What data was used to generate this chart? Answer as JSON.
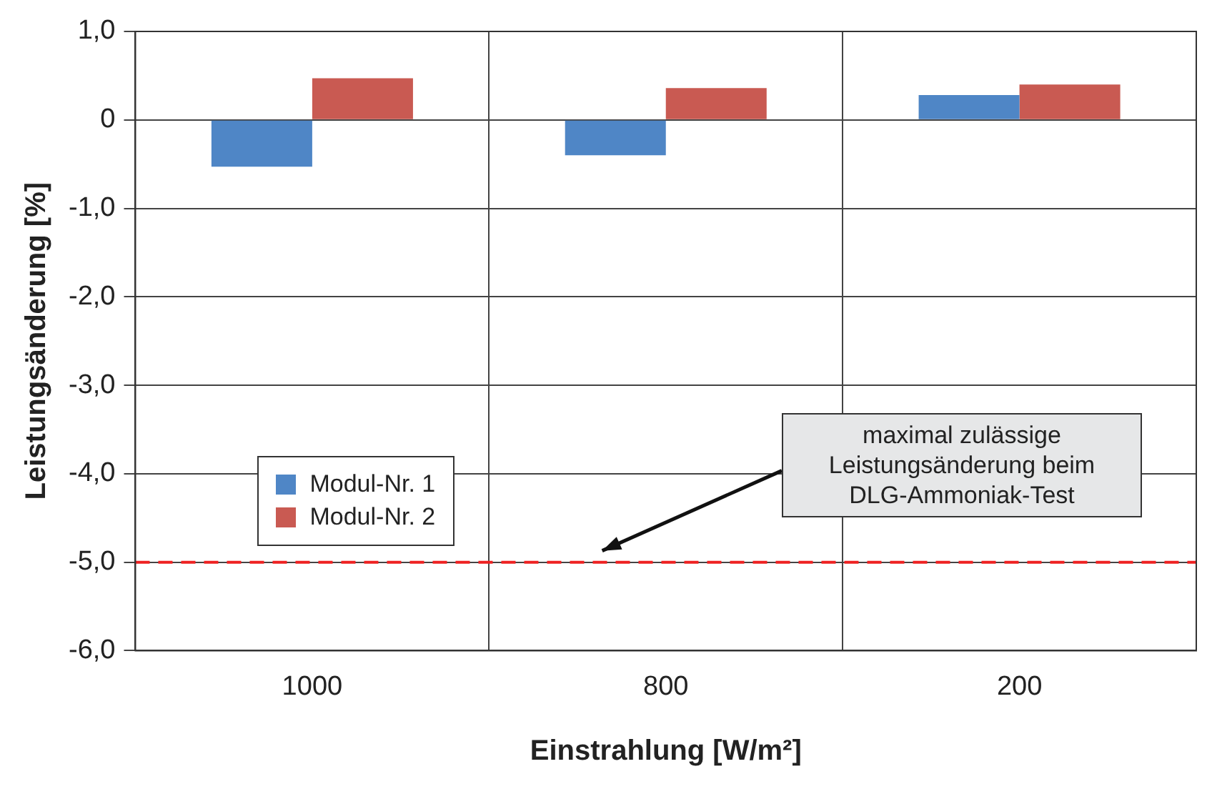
{
  "chart_data": {
    "type": "bar",
    "xlabel": "Einstrahlung [W/m²]",
    "ylabel": "Leistungsänderung [%]",
    "categories": [
      "1000",
      "800",
      "200"
    ],
    "series": [
      {
        "name": "Modul-Nr. 1",
        "color": "#4f86c6",
        "values": [
          -0.53,
          -0.4,
          0.28
        ]
      },
      {
        "name": "Modul-Nr. 2",
        "color": "#c95a52",
        "values": [
          0.47,
          0.36,
          0.4
        ]
      }
    ],
    "ylim": [
      -6,
      1
    ],
    "yticks": [
      {
        "value": 1,
        "label": "1,0"
      },
      0,
      {
        "value": -1,
        "label": "-1,0"
      },
      {
        "value": -2,
        "label": "-2,0"
      },
      {
        "value": -3,
        "label": "-3,0"
      },
      {
        "value": -4,
        "label": "-4,0"
      },
      {
        "value": -5,
        "label": "-5,0"
      },
      {
        "value": -6,
        "label": "-6,0"
      }
    ],
    "ref_lines": [
      {
        "axis": "y",
        "value": -5,
        "label": "maximal zulässige Leistungsänderung beim DLG-Ammoniak-Test",
        "color": "#ee2222",
        "line_style": "dashed"
      }
    ],
    "grid": true,
    "legend": "left"
  }
}
